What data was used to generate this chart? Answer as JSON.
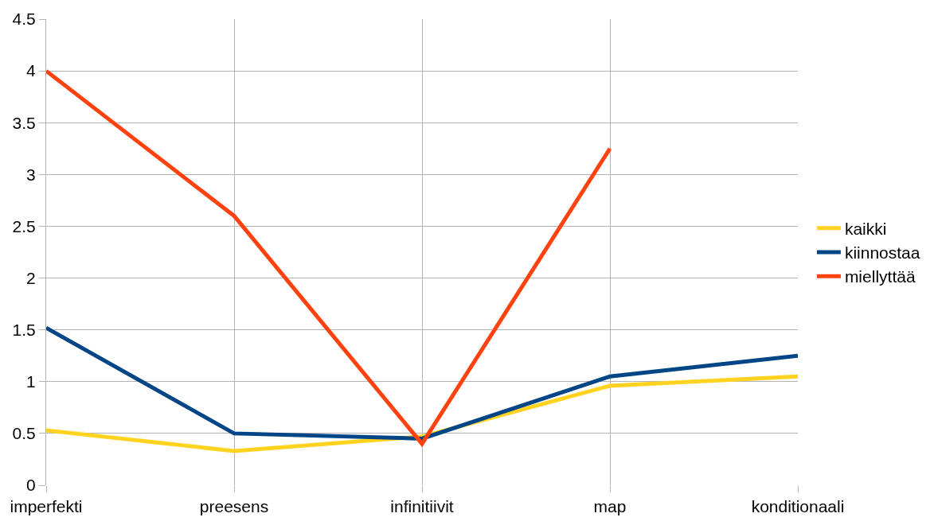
{
  "chart_data": {
    "type": "line",
    "categories": [
      "imperfekti",
      "preesens",
      "infinitiivit",
      "map",
      "konditionaali"
    ],
    "series": [
      {
        "name": "kaikki",
        "color": "#ffd320",
        "values": [
          0.53,
          0.33,
          0.47,
          0.96,
          1.05
        ]
      },
      {
        "name": "kiinnostaa",
        "color": "#004586",
        "values": [
          1.52,
          0.5,
          0.45,
          1.05,
          1.25
        ]
      },
      {
        "name": "miellyttää",
        "color": "#ff420e",
        "values": [
          4.0,
          2.6,
          0.4,
          3.25,
          null
        ]
      }
    ],
    "ylim": [
      0,
      4.5
    ],
    "yticks": [
      0,
      0.5,
      1,
      1.5,
      2,
      2.5,
      3,
      3.5,
      4,
      4.5
    ],
    "grid": true,
    "legend": "right",
    "marker": "none",
    "line_style": "solid"
  }
}
